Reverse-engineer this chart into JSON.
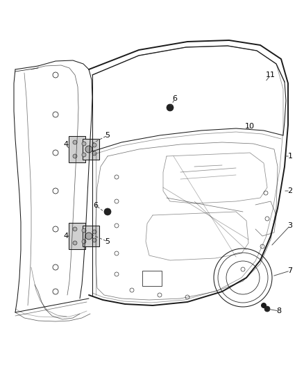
{
  "bg_color": "#ffffff",
  "line_color": "#1a1a1a",
  "dashed_color": "#444444",
  "label_color": "#000000",
  "figsize": [
    4.38,
    5.33
  ],
  "dpi": 100,
  "lw_main": 1.0,
  "lw_thin": 0.55,
  "lw_med": 0.75
}
